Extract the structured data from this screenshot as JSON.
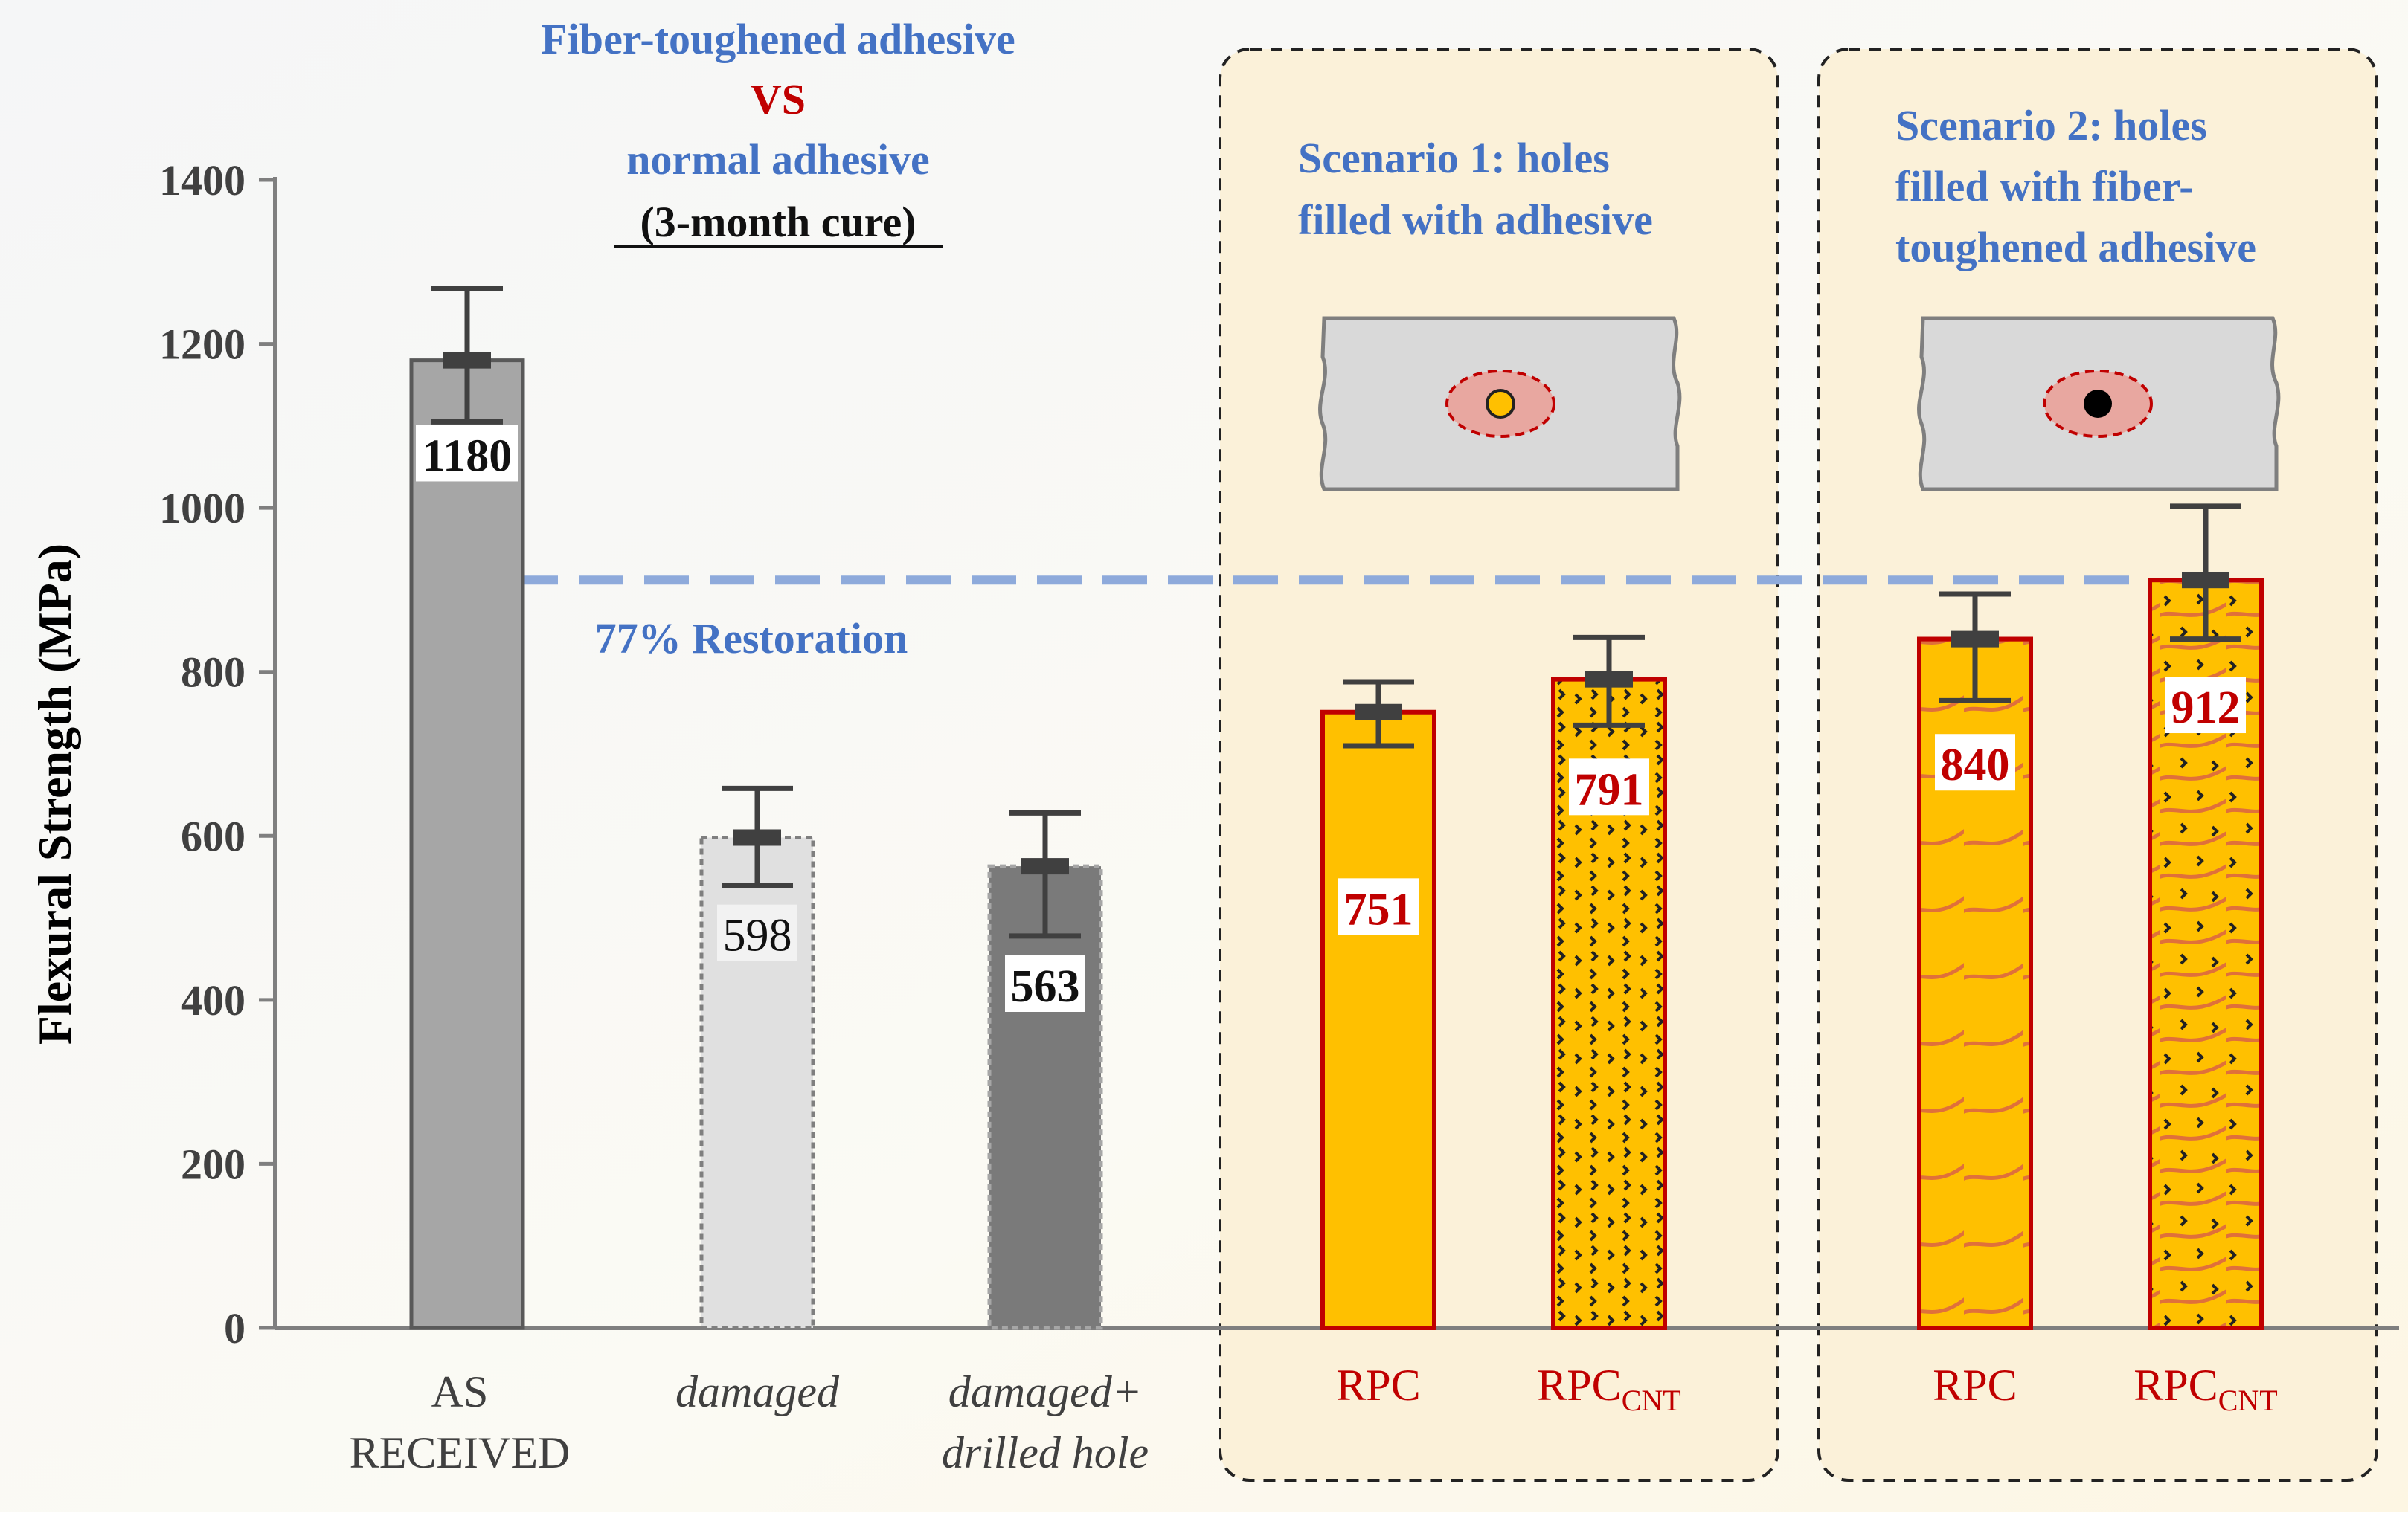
{
  "chart_data": {
    "type": "bar",
    "ylabel": "Flexural Strength (MPa)",
    "ylim": [
      0,
      1400
    ],
    "yticks": [
      0,
      200,
      400,
      600,
      800,
      1000,
      1200,
      1400
    ],
    "grid": false,
    "categories": [
      {
        "id": "as-received",
        "label_lines": [
          "AS",
          "RECEIVED"
        ],
        "italic": false
      },
      {
        "id": "damaged",
        "label_lines": [
          "damaged"
        ],
        "italic": true
      },
      {
        "id": "damaged-drilled",
        "label_lines": [
          "damaged+",
          "drilled hole"
        ],
        "italic": true
      },
      {
        "id": "s1-rpc",
        "label_main": "RPC",
        "label_sub": ""
      },
      {
        "id": "s1-rpccnt",
        "label_main": "RPC",
        "label_sub": "CNT"
      },
      {
        "id": "s2-rpc",
        "label_main": "RPC",
        "label_sub": ""
      },
      {
        "id": "s2-rpccnt",
        "label_main": "RPC",
        "label_sub": "CNT"
      }
    ],
    "values": [
      1180,
      598,
      563,
      751,
      791,
      840,
      912
    ],
    "value_labels": [
      "1180",
      "598",
      "563",
      "751",
      "791",
      "840",
      "912"
    ],
    "error_low": [
      1105,
      540,
      478,
      710,
      735,
      765,
      840
    ],
    "error_high": [
      1268,
      658,
      628,
      788,
      842,
      895,
      1002
    ],
    "colors": {
      "as_received": "#a6a6a6",
      "damaged": "#e0e0e0",
      "damaged_drilled": "#7a7a7a",
      "rpc_fill": "#ffc000",
      "rpc_border": "#c00000",
      "value_text_dark": "#111111",
      "value_text_red": "#c00000",
      "accent_blue": "#4472c4",
      "dashed_line": "#8eaadb",
      "axis": "#7f7f7f",
      "scenario_panel": "#fbf3df",
      "fiber_line": "#e0703a"
    },
    "reference_line_value": 912,
    "annotations": {
      "title_line1": "Fiber-toughened adhesive",
      "title_vs": "VS",
      "title_line3": "normal adhesive",
      "title_line4": "(3-month  cure)",
      "restoration": "77% Restoration",
      "scenario1_line1": "Scenario 1: holes",
      "scenario1_line2": "filled with adhesive",
      "scenario2_line1": "Scenario 2: holes",
      "scenario2_line2": "filled with fiber-",
      "scenario2_line3": "toughened adhesive"
    }
  }
}
